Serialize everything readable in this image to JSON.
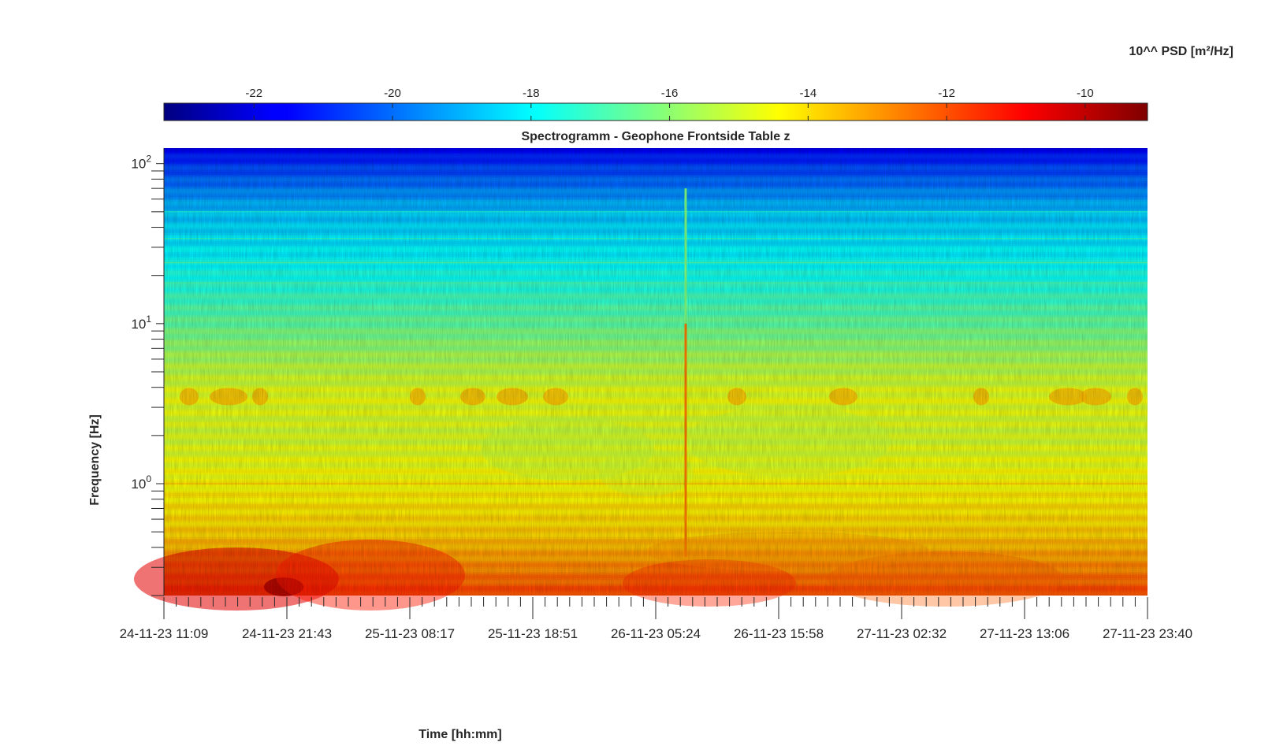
{
  "chart_data": {
    "type": "heatmap",
    "title": "Spectrogramm - Geophone Frontside Table z",
    "xlabel": "Time [hh:mm]",
    "ylabel": "Frequency [Hz]",
    "x_tick_labels": [
      "24-11-23 11:09",
      "24-11-23 21:43",
      "25-11-23 08:17",
      "25-11-23 18:51",
      "26-11-23 05:24",
      "26-11-23 15:58",
      "27-11-23 02:32",
      "27-11-23 13:06",
      "27-11-23 23:40"
    ],
    "y_scale": "log",
    "y_range": [
      0.2,
      125
    ],
    "y_ticks": [
      {
        "base": "10",
        "exp": "0",
        "value": 1
      },
      {
        "base": "10",
        "exp": "1",
        "value": 10
      },
      {
        "base": "10",
        "exp": "2",
        "value": 100
      }
    ],
    "colorbar": {
      "label": "10^^ PSD [m²/Hz]",
      "colormap": "jet",
      "range": [
        -23.3,
        -9.1
      ],
      "ticks": [
        -22,
        -20,
        -18,
        -16,
        -14,
        -12,
        -10
      ],
      "tick_labels": [
        "-22",
        "-20",
        "-18",
        "-16",
        "-14",
        "-12",
        "-10"
      ]
    },
    "approximate_profile": {
      "frequency_hz": [
        0.2,
        0.3,
        0.5,
        1,
        2,
        3.5,
        6,
        10,
        20,
        50,
        100,
        125
      ],
      "log10_psd": [
        -11.8,
        -12.8,
        -13.8,
        -14.4,
        -15,
        -14.7,
        -15.6,
        -16.6,
        -17.7,
        -18.8,
        -20.8,
        -21.6
      ]
    },
    "events": [
      {
        "time": "26-11-23 ~08:40",
        "description": "broadband vertical stripe up to ~70 Hz"
      }
    ],
    "grid": false,
    "legend": "none"
  }
}
